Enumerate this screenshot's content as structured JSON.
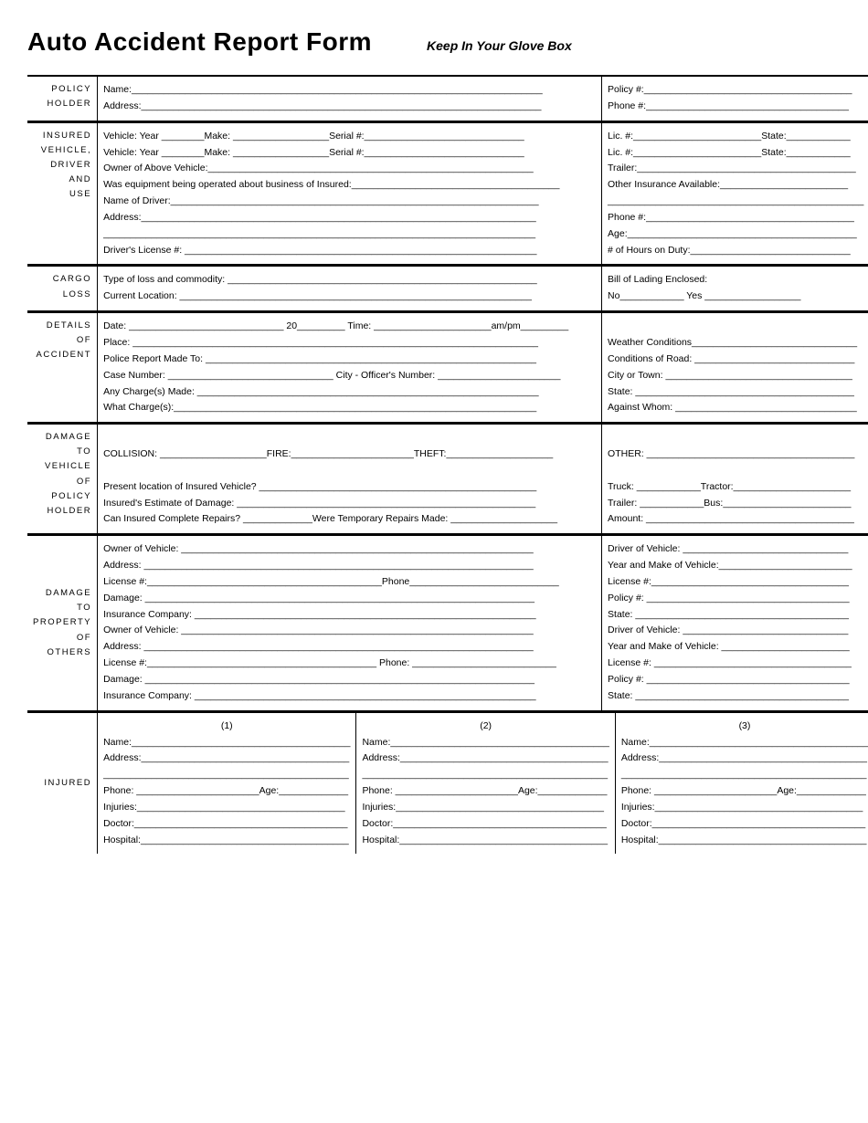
{
  "header": {
    "title": "Auto Accident Report Form",
    "subtitle": "Keep In Your Glove Box"
  },
  "sections": {
    "policyHolder": {
      "label": "POLICY HOLDER",
      "main": [
        "Name:_____________________________________________________________________________",
        "Address:___________________________________________________________________________"
      ],
      "side": [
        "Policy #:_______________________________________",
        "Phone #:______________________________________"
      ]
    },
    "insuredVehicle": {
      "label": "INSURED VEHICLE, DRIVER AND USE",
      "main": [
        "Vehicle: Year ________Make: __________________Serial #:______________________________",
        "Vehicle: Year ________Make: __________________Serial #:______________________________",
        "Owner of Above Vehicle:_____________________________________________________________",
        "Was equipment being operated about business of Insured:_______________________________________",
        "Name of Driver:_____________________________________________________________________",
        "Address:__________________________________________________________________________",
        "_________________________________________________________________________________",
        "Driver's License #: __________________________________________________________________"
      ],
      "side": [
        "Lic. #:________________________State:____________",
        "Lic. #:________________________State:____________",
        "Trailer:_________________________________________",
        "Other Insurance Available:________________________",
        "________________________________________________",
        "Phone #:_______________________________________",
        "Age:___________________________________________",
        "# of Hours on Duty:______________________________"
      ]
    },
    "cargoLoss": {
      "label": "CARGO LOSS",
      "main": [
        "Type of loss and commodity: __________________________________________________________",
        "Current Location: __________________________________________________________________"
      ],
      "side": [
        "Bill of Lading Enclosed:",
        "No____________ Yes __________________"
      ]
    },
    "detailsAccident": {
      "label": "DETAILS OF ACCIDENT",
      "main": [
        "Date: _____________________________ 20_________ Time: ______________________am/pm_________",
        "Place: ____________________________________________________________________________",
        "Police Report Made To: ______________________________________________________________",
        "Case Number: _______________________________ City - Officer's Number: _______________________",
        "Any Charge(s) Made: ________________________________________________________________",
        "What Charge(s):____________________________________________________________________"
      ],
      "side": [
        "",
        "Weather Conditions_______________________________",
        "Conditions of Road: ______________________________",
        "City or Town: ___________________________________",
        "State: _________________________________________",
        "Against Whom: __________________________________"
      ]
    },
    "damageVehicle": {
      "label": "DAMAGE TO VEHICLE OF POLICY HOLDER",
      "main": [
        "",
        "COLLISION: ____________________FIRE:_______________________THEFT:____________________",
        "",
        "Present location of Insured Vehicle? ____________________________________________________",
        "Insured's Estimate of Damage: ________________________________________________________",
        "Can Insured Complete Repairs? _____________Were Temporary Repairs Made: ____________________"
      ],
      "side": [
        "",
        "OTHER: _______________________________________",
        "",
        "Truck: ____________Tractor:______________________",
        "Trailer: ____________Bus:________________________",
        "Amount: _______________________________________"
      ]
    },
    "damageProperty": {
      "label": "DAMAGE TO PROPERTY OF OTHERS",
      "main": [
        "Owner of Vehicle: __________________________________________________________________",
        "Address: _________________________________________________________________________",
        "License #:____________________________________________Phone____________________________",
        "Damage: _________________________________________________________________________",
        "Insurance Company: ________________________________________________________________",
        "Owner of Vehicle: __________________________________________________________________",
        "Address: _________________________________________________________________________",
        "License #:___________________________________________ Phone: ___________________________",
        "Damage: _________________________________________________________________________",
        "Insurance Company: ________________________________________________________________"
      ],
      "side": [
        "Driver of Vehicle: _______________________________",
        "Year and Make of Vehicle:_________________________",
        "License #:_____________________________________",
        "Policy #: ______________________________________",
        "State: ________________________________________",
        "Driver of Vehicle: _______________________________",
        "Year and Make of Vehicle: ________________________",
        "License #: _____________________________________",
        "Policy #: ______________________________________",
        "State: ________________________________________"
      ]
    },
    "injured": {
      "label": "INJURED",
      "columns": [
        {
          "head": "(1)",
          "lines": [
            "Name:_________________________________________",
            "Address:_______________________________________",
            "______________________________________________",
            "Phone: _______________________Age:_____________",
            "Injuries:_______________________________________",
            "Doctor:________________________________________",
            "Hospital:_______________________________________"
          ]
        },
        {
          "head": "(2)",
          "lines": [
            "Name:_________________________________________",
            "Address:_______________________________________",
            "______________________________________________",
            "Phone: _______________________Age:_____________",
            "Injuries:_______________________________________",
            "Doctor:________________________________________",
            "Hospital:_______________________________________"
          ]
        },
        {
          "head": "(3)",
          "lines": [
            "Name:_________________________________________",
            "Address:_______________________________________",
            "______________________________________________",
            "Phone: _______________________Age:_____________",
            "Injuries:_______________________________________",
            "Doctor:________________________________________",
            "Hospital:_______________________________________"
          ]
        }
      ]
    }
  }
}
